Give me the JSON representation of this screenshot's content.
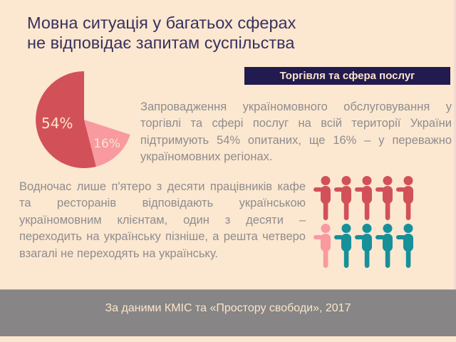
{
  "title": {
    "lines": [
      "Мовна ситуація у багатьох сферах",
      "не відповідає запитам суспільства"
    ]
  },
  "section_banner": {
    "label": "Торгівля та сфера послуг"
  },
  "paragraphs": {
    "top": "Запровадження україномовного обслуговування у торгівлі та сфері послуг на всій території України підтримують 54% опитаних, ще 16% – у переважно україномовних регіонах.",
    "bottom": "Водночас лише п'ятеро з десяти працівників кафе та ресторанів відповідають українською україномовним клієнтам, один з десяти – переходить на українську пізніше, а решта четверо взагалі не переходять на українську."
  },
  "footer": {
    "source_text": "За даними КМІС та «Простору свободи», 2017"
  },
  "colors": {
    "background": "#fce7d0",
    "title_text": "#37325e",
    "body_text": "#8f8d8e",
    "navy": "#221b4f",
    "cream_text": "#fbe5cc",
    "footer_gray": "#878585",
    "red": "#d25159",
    "pink": "#f89aa0",
    "teal": "#17909a"
  },
  "chart_data": [
    {
      "type": "pie",
      "title": "Торгівля та сфера послуг",
      "slices": [
        {
          "label": "54%",
          "value": 54,
          "color": "#d25159",
          "meaning": "підтримують україномовне обслуговування на всій території України"
        },
        {
          "label": "16%",
          "value": 16,
          "color": "#f89aa0",
          "meaning": "підтримують у переважно україномовних регіонах"
        }
      ],
      "remainder_value": 30,
      "remainder_note": "решта 30% не зафарбовано (порожній сектор угорі праворуч)",
      "label_color": "#fbe5cc",
      "legend": "off"
    },
    {
      "type": "pictogram",
      "unit": "10 працівників кафе та ресторанів",
      "rows": [
        {
          "segments": [
            {
              "count": 5,
              "color": "#d25159",
              "meaning": "відповідають українською україномовним клієнтам"
            }
          ]
        },
        {
          "segments": [
            {
              "count": 1,
              "color": "#f89aa0",
              "meaning": "переходить на українську пізніше"
            },
            {
              "count": 4,
              "color": "#17909a",
              "meaning": "взагалі не переходять на українську"
            }
          ]
        }
      ]
    }
  ]
}
